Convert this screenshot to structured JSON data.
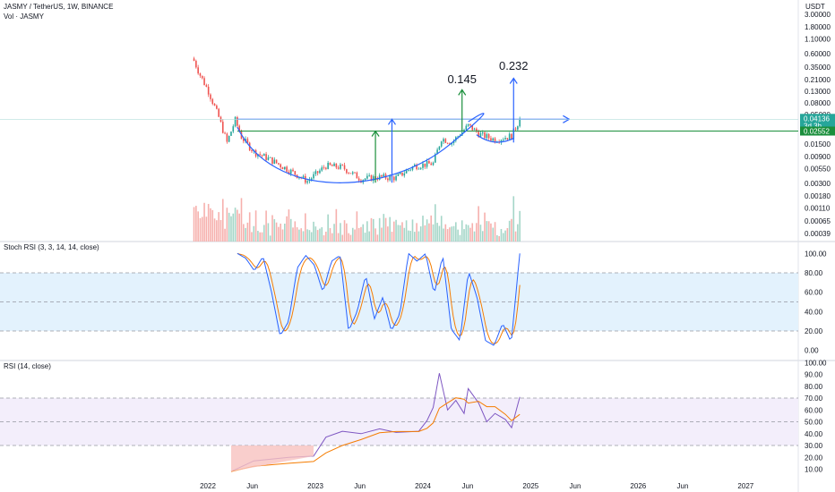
{
  "header": {
    "symbol_line": "JASMY / TetherUS, 1W, BINANCE",
    "volume_line": "Vol · JASMY",
    "currency": "USDT"
  },
  "colors": {
    "up": "#26a69a",
    "down": "#ef5350",
    "blue": "#2962ff",
    "green": "#1b8f3c",
    "orange": "#f57c00",
    "rsi_line": "#7e57c2",
    "band_blue": "#e3f2fd",
    "band_purple": "#f3eefb"
  },
  "chart_data": [
    {
      "type": "candlestick",
      "name": "price",
      "scale": "log",
      "y_ticks": [
        "3.00000",
        "1.80000",
        "1.10000",
        "0.60000",
        "0.35000",
        "0.21000",
        "0.13000",
        "0.08000",
        "0.05000",
        "0.03000",
        "0.01500",
        "0.00900",
        "0.00550",
        "0.00300",
        "0.00180",
        "0.00110",
        "0.00065",
        "0.00039"
      ],
      "y_tick_values": [
        3.0,
        1.8,
        1.1,
        0.6,
        0.35,
        0.21,
        0.13,
        0.08,
        0.05,
        0.03,
        0.015,
        0.009,
        0.0055,
        0.003,
        0.0018,
        0.0011,
        0.00065,
        0.00039
      ],
      "x_ticks": [
        "2022",
        "Jun",
        "2023",
        "Jun",
        "2024",
        "Jun",
        "2025",
        "Jun",
        "2026",
        "Jun",
        "2027"
      ],
      "x_tick_dates": [
        "2022-01-01",
        "2022-06-01",
        "2023-01-01",
        "2023-06-01",
        "2024-01-01",
        "2024-06-01",
        "2025-01-01",
        "2025-06-01",
        "2026-01-01",
        "2026-06-01",
        "2027-01-01"
      ],
      "price_labels": {
        "last": "0.04136",
        "countdown": "3d 3h",
        "level": "0.02552"
      },
      "annotations": [
        {
          "text": "0.145",
          "color": "green"
        },
        {
          "text": "0.232",
          "color": "blue"
        }
      ],
      "levels": {
        "resistance": 0.04136,
        "support": 0.02552,
        "target_green": 0.145,
        "target_blue": 0.232
      },
      "series_points": [
        {
          "date": "2021-11-15",
          "close": 0.45
        },
        {
          "date": "2021-12-06",
          "close": 0.25
        },
        {
          "date": "2022-01-03",
          "close": 0.13
        },
        {
          "date": "2022-02-07",
          "close": 0.045
        },
        {
          "date": "2022-03-07",
          "close": 0.016
        },
        {
          "date": "2022-04-04",
          "close": 0.04
        },
        {
          "date": "2022-04-25",
          "close": 0.02
        },
        {
          "date": "2022-06-06",
          "close": 0.011
        },
        {
          "date": "2022-08-01",
          "close": 0.008
        },
        {
          "date": "2022-10-03",
          "close": 0.0052
        },
        {
          "date": "2022-12-05",
          "close": 0.0033
        },
        {
          "date": "2023-02-06",
          "close": 0.0062
        },
        {
          "date": "2023-04-03",
          "close": 0.0058
        },
        {
          "date": "2023-06-05",
          "close": 0.0036
        },
        {
          "date": "2023-08-07",
          "close": 0.0039
        },
        {
          "date": "2023-10-02",
          "close": 0.0038
        },
        {
          "date": "2023-12-04",
          "close": 0.0062
        },
        {
          "date": "2024-02-05",
          "close": 0.0068
        },
        {
          "date": "2024-03-04",
          "close": 0.019
        },
        {
          "date": "2024-04-08",
          "close": 0.016
        },
        {
          "date": "2024-06-03",
          "close": 0.032
        },
        {
          "date": "2024-07-15",
          "close": 0.022
        },
        {
          "date": "2024-09-02",
          "close": 0.018
        },
        {
          "date": "2024-10-28",
          "close": 0.021
        },
        {
          "date": "2024-11-25",
          "close": 0.041
        }
      ]
    },
    {
      "type": "line",
      "name": "Stoch RSI (3, 3, 14, 14, close)",
      "ylim": [
        0,
        100
      ],
      "y_ticks": [
        "100.00",
        "80.00",
        "60.00",
        "40.00",
        "20.00",
        "0.00"
      ],
      "y_tick_values": [
        100,
        80,
        60,
        40,
        20,
        0
      ],
      "bands": [
        20,
        50,
        80
      ]
    },
    {
      "type": "line",
      "name": "RSI (14, close)",
      "ylim": [
        0,
        100
      ],
      "y_ticks": [
        "100.00",
        "90.00",
        "80.00",
        "70.00",
        "60.00",
        "50.00",
        "40.00",
        "30.00",
        "20.00",
        "10.00"
      ],
      "y_tick_values": [
        100,
        90,
        80,
        70,
        60,
        50,
        40,
        30,
        20,
        10
      ],
      "bands": [
        30,
        50,
        70
      ],
      "points": [
        {
          "date": "2022-03-21",
          "rsi": 8
        },
        {
          "date": "2022-06-06",
          "rsi": 17
        },
        {
          "date": "2022-10-03",
          "rsi": 20
        },
        {
          "date": "2022-12-26",
          "rsi": 21
        },
        {
          "date": "2023-02-06",
          "rsi": 37
        },
        {
          "date": "2023-04-03",
          "rsi": 42
        },
        {
          "date": "2023-06-05",
          "rsi": 40
        },
        {
          "date": "2023-08-07",
          "rsi": 44
        },
        {
          "date": "2023-10-02",
          "rsi": 41
        },
        {
          "date": "2023-12-18",
          "rsi": 42
        },
        {
          "date": "2024-01-15",
          "rsi": 51
        },
        {
          "date": "2024-02-05",
          "rsi": 62
        },
        {
          "date": "2024-02-26",
          "rsi": 91
        },
        {
          "date": "2024-03-25",
          "rsi": 60
        },
        {
          "date": "2024-04-22",
          "rsi": 68
        },
        {
          "date": "2024-05-20",
          "rsi": 57
        },
        {
          "date": "2024-06-03",
          "rsi": 78
        },
        {
          "date": "2024-07-08",
          "rsi": 66
        },
        {
          "date": "2024-08-05",
          "rsi": 50
        },
        {
          "date": "2024-09-02",
          "rsi": 57
        },
        {
          "date": "2024-10-07",
          "rsi": 52
        },
        {
          "date": "2024-10-28",
          "rsi": 45
        },
        {
          "date": "2024-11-25",
          "rsi": 71
        }
      ]
    }
  ]
}
